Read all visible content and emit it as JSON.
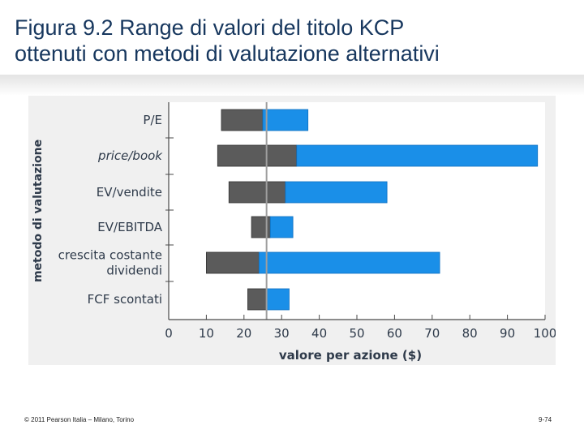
{
  "slide": {
    "title_line1": "Figura 9.2  Range di valori del titolo KCP",
    "title_line2": "ottenuti con metodi di valutazione alternativi",
    "footer_left": "© 2011 Pearson Italia – Milano, Torino",
    "footer_right": "9-74"
  },
  "chart_data": {
    "type": "bar",
    "subtype": "floating-range",
    "categories": [
      "P/E",
      "price/book",
      "EV/vendite",
      "EV/EBITDA",
      "crescita costante dividendi",
      "FCF scontati"
    ],
    "category_lines": [
      [
        "P/E"
      ],
      [
        "price/book"
      ],
      [
        "EV/vendite"
      ],
      [
        "EV/EBITDA"
      ],
      [
        "crescita costante",
        "dividendi"
      ],
      [
        "FCF scontati"
      ]
    ],
    "ranges": [
      {
        "low": 14,
        "mid": 25,
        "high": 37
      },
      {
        "low": 13,
        "mid": 34,
        "high": 98
      },
      {
        "low": 16,
        "mid": 31,
        "high": 58
      },
      {
        "low": 22,
        "mid": 27,
        "high": 33
      },
      {
        "low": 10,
        "mid": 24,
        "high": 72
      },
      {
        "low": 21,
        "mid": 26,
        "high": 32
      }
    ],
    "reference_value": 26,
    "xlabel": "valore per azione ($)",
    "ylabel": "metodo di valutazione",
    "xlim": [
      0,
      100
    ],
    "xticks": [
      0,
      10,
      20,
      30,
      40,
      50,
      60,
      70,
      80,
      90,
      100
    ],
    "colors": {
      "low_segment": "#5b5b5b",
      "high_segment": "#1a8fe8",
      "reference_line": "#9e9e9e",
      "axis": "#4a4a4a",
      "label_text": "#2e3a4a"
    }
  }
}
